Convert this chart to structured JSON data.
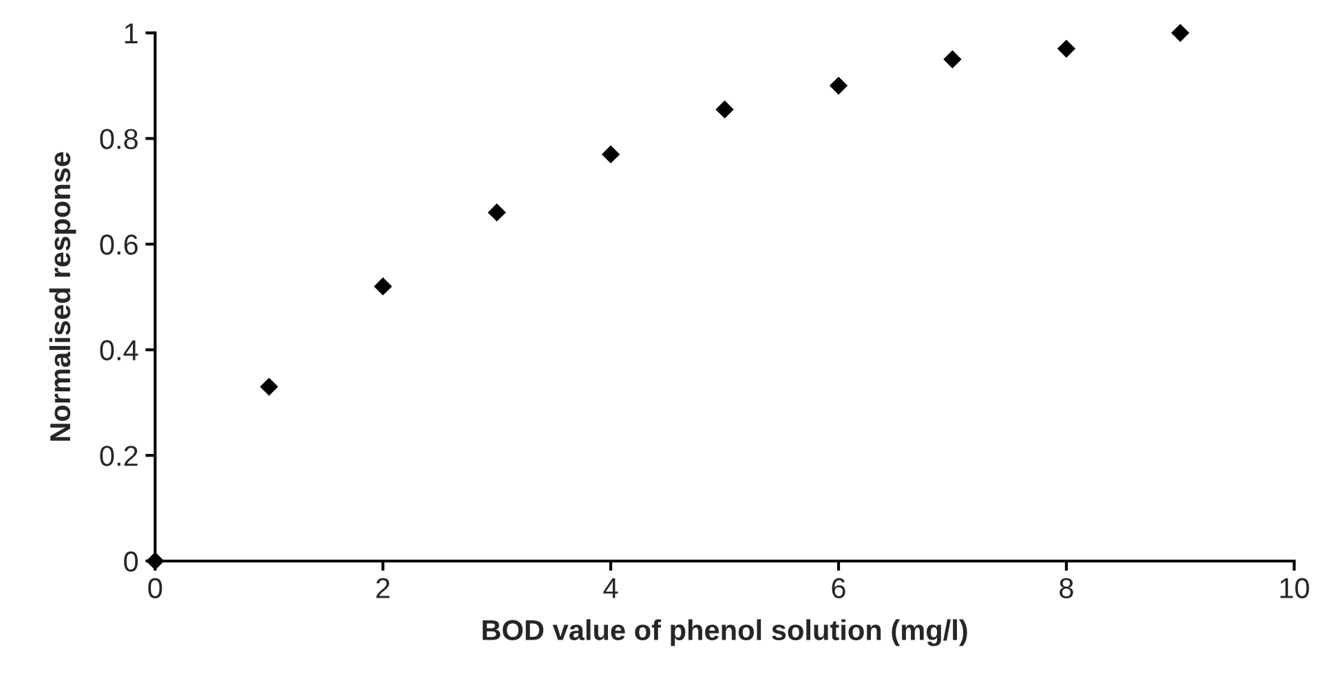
{
  "chart_data": {
    "type": "scatter",
    "xlabel": "BOD value of phenol solution (mg/l)",
    "ylabel": "Normalised response",
    "x": [
      0,
      1,
      2,
      3,
      4,
      5,
      6,
      7,
      8,
      9
    ],
    "series": [
      {
        "color": "#000000",
        "values": [
          0,
          0.33,
          0.52,
          0.66,
          0.77,
          0.855,
          0.9,
          0.95,
          0.97,
          1.0
        ]
      }
    ],
    "xlim": [
      0,
      10
    ],
    "xticks": [
      0,
      2,
      4,
      6,
      8,
      10
    ],
    "ylim": [
      0,
      1
    ],
    "yticks": [
      0,
      0.2,
      0.4,
      0.6,
      0.8,
      1
    ],
    "marker": "diamond",
    "grid": false,
    "legend": false
  }
}
